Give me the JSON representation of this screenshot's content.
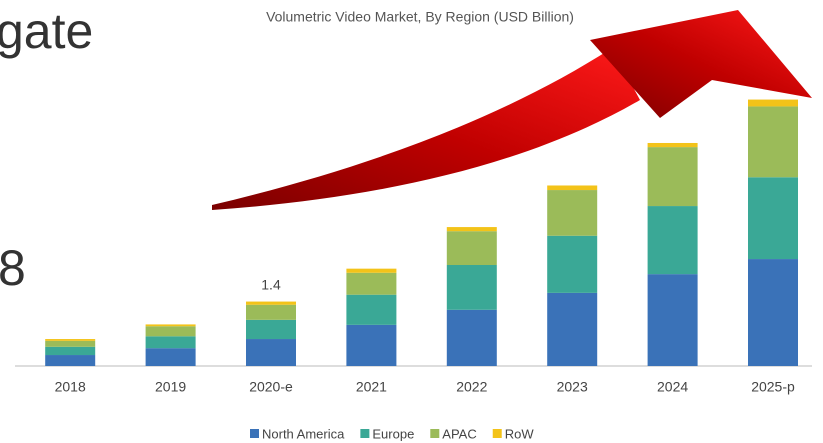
{
  "fragments": [
    "gate",
    "8"
  ],
  "chart_data": {
    "type": "stacked-bar",
    "title": "Volumetric Video Market, By Region (USD Billion)",
    "categories": [
      "2018",
      "2019",
      "2020-e",
      "2021",
      "2022",
      "2023",
      "2024",
      "2025-p"
    ],
    "series": [
      {
        "name": "North America",
        "color": "#3a72b8",
        "values": [
          0.24,
          0.39,
          0.59,
          0.9,
          1.23,
          1.6,
          2.01,
          2.34
        ]
      },
      {
        "name": "Europe",
        "color": "#3aa896",
        "values": [
          0.18,
          0.26,
          0.42,
          0.66,
          0.98,
          1.25,
          1.49,
          1.79
        ]
      },
      {
        "name": "APAC",
        "color": "#9bbb59",
        "values": [
          0.13,
          0.22,
          0.33,
          0.48,
          0.74,
          1.0,
          1.29,
          1.55
        ]
      },
      {
        "name": "RoW",
        "color": "#f3c319",
        "values": [
          0.04,
          0.04,
          0.07,
          0.09,
          0.09,
          0.1,
          0.09,
          0.15
        ]
      }
    ],
    "totals": [
      null,
      null,
      1.4,
      null,
      null,
      null,
      null,
      5.8
    ]
  }
}
